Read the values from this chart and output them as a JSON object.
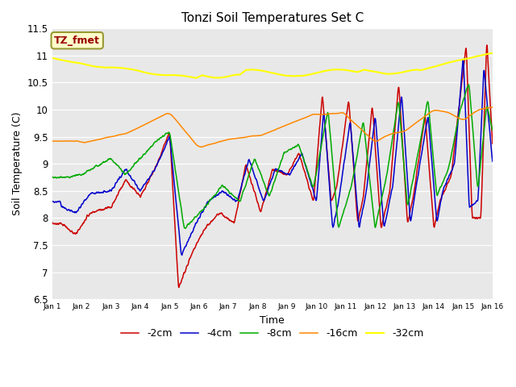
{
  "title": "Tonzi Soil Temperatures Set C",
  "xlabel": "Time",
  "ylabel": "Soil Temperature (C)",
  "ylim": [
    6.5,
    11.5
  ],
  "annotation_text": "TZ_fmet",
  "annotation_color": "#990000",
  "annotation_bg": "#ffffcc",
  "annotation_border": "#999933",
  "legend_entries": [
    "-2cm",
    "-4cm",
    "-8cm",
    "-16cm",
    "-32cm"
  ],
  "line_colors": [
    "#cc0000",
    "#0000cc",
    "#00aa00",
    "#ff8800",
    "#ffff00"
  ],
  "xtick_labels": [
    "Jan 1",
    "Jan 2",
    "Jan 3",
    "Jan 4",
    "Jan 5",
    "Jan 6",
    "Jan 7",
    "Jan 8",
    "Jan 9",
    "Jan 10",
    "Jan 11",
    "Jan 12",
    "Jan 13",
    "Jan 14",
    "Jan 15",
    "Jan 16"
  ],
  "ytick_values": [
    6.5,
    7.0,
    7.5,
    8.0,
    8.5,
    9.0,
    9.5,
    10.0,
    10.5,
    11.0,
    11.5
  ],
  "n_points": 1500,
  "time_days": 15
}
